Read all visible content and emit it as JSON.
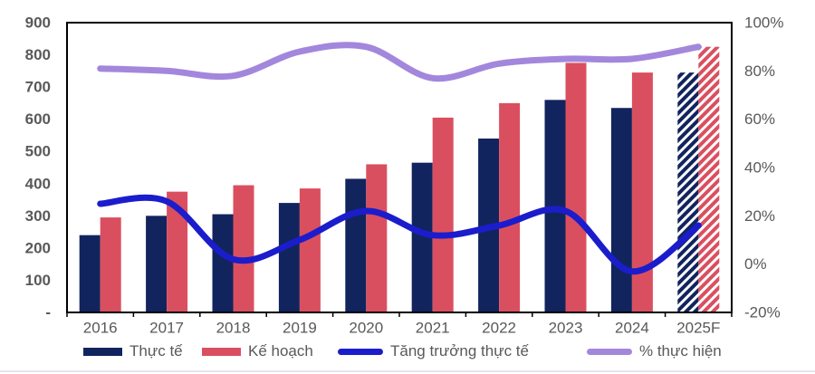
{
  "chart_data": {
    "type": "combo-bar-line",
    "categories": [
      "2016",
      "2017",
      "2018",
      "2019",
      "2020",
      "2021",
      "2022",
      "2023",
      "2024",
      "2025F"
    ],
    "forecast_index": 9,
    "series": [
      {
        "key": "thuc-te",
        "name": "Thực tế",
        "type": "bar",
        "axis": "left",
        "color": "#12245e",
        "values": [
          240,
          300,
          305,
          340,
          415,
          465,
          540,
          660,
          635,
          745
        ]
      },
      {
        "key": "ke-hoach",
        "name": "Kế hoạch",
        "type": "bar",
        "axis": "left",
        "color": "#da4f5f",
        "values": [
          295,
          375,
          395,
          385,
          460,
          605,
          650,
          775,
          745,
          825
        ]
      },
      {
        "key": "tang-truong-thuc-te",
        "name": "Tăng trưởng thực tế",
        "type": "line",
        "axis": "right",
        "color": "#1b1dcc",
        "values": [
          25,
          26,
          2,
          10,
          22,
          12,
          16,
          22,
          -3,
          16
        ]
      },
      {
        "key": "phan-tram-thuc-hien",
        "name": "% thực hiện",
        "type": "line",
        "axis": "right",
        "color": "#a387dc",
        "values": [
          81,
          80,
          78,
          88,
          90,
          77,
          83,
          85,
          85,
          90
        ]
      }
    ],
    "left_axis": {
      "min": 0,
      "max": 900,
      "tick_values": [
        900,
        800,
        700,
        600,
        500,
        400,
        300,
        200,
        100,
        0
      ],
      "tick_labels": [
        "900",
        "800",
        "700",
        "600",
        "500",
        "400",
        "300",
        "200",
        "100",
        "-"
      ]
    },
    "right_axis": {
      "min": -20,
      "max": 100,
      "tick_values": [
        100,
        80,
        60,
        40,
        20,
        0,
        -20
      ],
      "tick_labels": [
        "100%",
        "80%",
        "60%",
        "40%",
        "20%",
        "0%",
        "-20%"
      ]
    },
    "legend_position": "bottom",
    "grid": false,
    "axis_text_color": "#595959",
    "border_color": "#000000"
  }
}
